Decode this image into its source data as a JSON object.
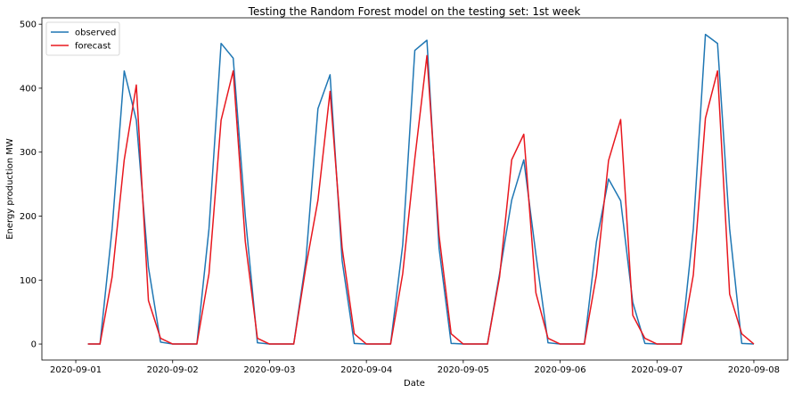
{
  "chart_data": {
    "type": "line",
    "title": "Testing the Random Forest model on the testing set: 1st week",
    "xlabel": "Date",
    "ylabel": "Energy production MW",
    "x_ticks": [
      "2020-09-01",
      "2020-09-02",
      "2020-09-03",
      "2020-09-04",
      "2020-09-05",
      "2020-09-06",
      "2020-09-07",
      "2020-09-08"
    ],
    "y_ticks": [
      0,
      100,
      200,
      300,
      400,
      500
    ],
    "xlim": [
      -0.35,
      7.35
    ],
    "ylim": [
      -25,
      510
    ],
    "grid": false,
    "legend_position": "top-left",
    "x_step_days": 0.125,
    "x_start_day": 0.125,
    "series": [
      {
        "name": "observed",
        "color": "#1f77b4",
        "values": [
          0,
          0,
          180,
          427,
          350,
          120,
          3,
          0,
          0,
          0,
          180,
          470,
          447,
          200,
          2,
          0,
          0,
          0,
          130,
          368,
          421,
          130,
          1,
          0,
          0,
          0,
          155,
          459,
          475,
          150,
          1,
          0,
          0,
          0,
          110,
          225,
          288,
          140,
          2,
          0,
          0,
          0,
          160,
          258,
          224,
          65,
          1,
          0,
          0,
          0,
          180,
          484,
          470,
          180,
          1,
          0
        ]
      },
      {
        "name": "forecast",
        "color": "#e8181f",
        "values": [
          0,
          0,
          105,
          288,
          405,
          68,
          9,
          0,
          0,
          0,
          110,
          350,
          427,
          160,
          9,
          0,
          0,
          0,
          120,
          225,
          395,
          150,
          16,
          0,
          0,
          0,
          110,
          290,
          451,
          170,
          16,
          0,
          0,
          0,
          105,
          288,
          328,
          80,
          9,
          0,
          0,
          0,
          108,
          287,
          351,
          45,
          9,
          0,
          0,
          0,
          108,
          353,
          427,
          78,
          16,
          0
        ]
      }
    ]
  }
}
